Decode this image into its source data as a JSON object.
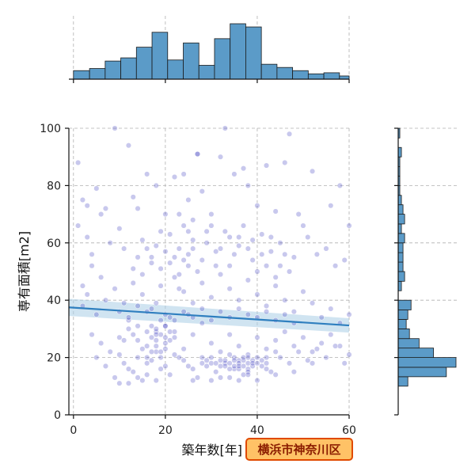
{
  "chart_data": {
    "type": "scatter",
    "title": "",
    "xlabel": "築年数[年]",
    "ylabel": "専有面積[m2]",
    "tag": "横浜市神奈川区",
    "xlim": [
      -1,
      60
    ],
    "ylim": [
      0,
      100
    ],
    "x_ticks": [
      0,
      20,
      40,
      60
    ],
    "y_ticks": [
      0,
      20,
      40,
      60,
      80,
      100
    ],
    "grid": true,
    "colors": {
      "point": "#3b3bbf",
      "regression": "#2f7fbf",
      "band": "#a9cde6",
      "hist_fill": "#5b9bc8",
      "hist_edge": "#1a1a1a",
      "tag_fill": "#ffc266",
      "tag_border": "#e04a00"
    },
    "regression": {
      "x": [
        -1,
        60
      ],
      "y": [
        37.5,
        31.2
      ],
      "band_halfwidth": [
        3.0,
        2.5
      ]
    },
    "points": [
      [
        1,
        88
      ],
      [
        1,
        66
      ],
      [
        2,
        75
      ],
      [
        3,
        73
      ],
      [
        4,
        56
      ],
      [
        5,
        79
      ],
      [
        6,
        70
      ],
      [
        7,
        72
      ],
      [
        3,
        62
      ],
      [
        2,
        45
      ],
      [
        4,
        52
      ],
      [
        6,
        48
      ],
      [
        9,
        100
      ],
      [
        10,
        65
      ],
      [
        12,
        94
      ],
      [
        13,
        76
      ],
      [
        14,
        72
      ],
      [
        16,
        84
      ],
      [
        18,
        80
      ],
      [
        20,
        70
      ],
      [
        22,
        83
      ],
      [
        24,
        84
      ],
      [
        25,
        75
      ],
      [
        27,
        91
      ],
      [
        28,
        78
      ],
      [
        30,
        70
      ],
      [
        32,
        90
      ],
      [
        33,
        100
      ],
      [
        35,
        84
      ],
      [
        37,
        86
      ],
      [
        38,
        80
      ],
      [
        40,
        73
      ],
      [
        42,
        87
      ],
      [
        44,
        71
      ],
      [
        46,
        88
      ],
      [
        47,
        98
      ],
      [
        49,
        70
      ],
      [
        50,
        66
      ],
      [
        52,
        85
      ],
      [
        56,
        73
      ],
      [
        58,
        80
      ],
      [
        60,
        66
      ],
      [
        8,
        60
      ],
      [
        11,
        58
      ],
      [
        15,
        61
      ],
      [
        17,
        55
      ],
      [
        19,
        64
      ],
      [
        21,
        63
      ],
      [
        23,
        58
      ],
      [
        26,
        61
      ],
      [
        29,
        64
      ],
      [
        31,
        57
      ],
      [
        34,
        62
      ],
      [
        36,
        59
      ],
      [
        39,
        61
      ],
      [
        41,
        63
      ],
      [
        43,
        57
      ],
      [
        45,
        60
      ],
      [
        48,
        55
      ],
      [
        51,
        62
      ],
      [
        53,
        56
      ],
      [
        55,
        58
      ],
      [
        57,
        52
      ],
      [
        59,
        54
      ],
      [
        2,
        38
      ],
      [
        3,
        42
      ],
      [
        5,
        35
      ],
      [
        7,
        40
      ],
      [
        9,
        44
      ],
      [
        11,
        39
      ],
      [
        13,
        46
      ],
      [
        15,
        42
      ],
      [
        17,
        37
      ],
      [
        19,
        45
      ],
      [
        22,
        48
      ],
      [
        24,
        43
      ],
      [
        26,
        39
      ],
      [
        28,
        46
      ],
      [
        30,
        41
      ],
      [
        32,
        49
      ],
      [
        34,
        44
      ],
      [
        36,
        40
      ],
      [
        38,
        47
      ],
      [
        40,
        42
      ],
      [
        42,
        38
      ],
      [
        44,
        45
      ],
      [
        46,
        40
      ],
      [
        48,
        36
      ],
      [
        50,
        43
      ],
      [
        52,
        39
      ],
      [
        54,
        34
      ],
      [
        56,
        37
      ],
      [
        58,
        32
      ],
      [
        60,
        35
      ],
      [
        4,
        28
      ],
      [
        6,
        25
      ],
      [
        8,
        22
      ],
      [
        10,
        27
      ],
      [
        12,
        30
      ],
      [
        14,
        26
      ],
      [
        16,
        24
      ],
      [
        18,
        29
      ],
      [
        20,
        31
      ],
      [
        22,
        27
      ],
      [
        24,
        23
      ],
      [
        26,
        28
      ],
      [
        28,
        32
      ],
      [
        30,
        25
      ],
      [
        32,
        22
      ],
      [
        34,
        28
      ],
      [
        36,
        24
      ],
      [
        38,
        21
      ],
      [
        40,
        27
      ],
      [
        42,
        23
      ],
      [
        44,
        26
      ],
      [
        46,
        29
      ],
      [
        48,
        24
      ],
      [
        50,
        27
      ],
      [
        52,
        22
      ],
      [
        54,
        25
      ],
      [
        56,
        28
      ],
      [
        58,
        24
      ],
      [
        60,
        21
      ],
      [
        5,
        20
      ],
      [
        7,
        17
      ],
      [
        9,
        13
      ],
      [
        11,
        18
      ],
      [
        13,
        15
      ],
      [
        15,
        12
      ],
      [
        17,
        19
      ],
      [
        19,
        16
      ],
      [
        21,
        14
      ],
      [
        23,
        20
      ],
      [
        25,
        17
      ],
      [
        27,
        13
      ],
      [
        29,
        19
      ],
      [
        31,
        15
      ],
      [
        33,
        18
      ],
      [
        35,
        16
      ],
      [
        37,
        14
      ],
      [
        39,
        19
      ],
      [
        41,
        17
      ],
      [
        43,
        15
      ],
      [
        45,
        20
      ],
      [
        47,
        18
      ],
      [
        49,
        22
      ],
      [
        51,
        19
      ],
      [
        53,
        23
      ],
      [
        55,
        20
      ],
      [
        57,
        24
      ],
      [
        59,
        18
      ],
      [
        10,
        21
      ],
      [
        12,
        16
      ],
      [
        14,
        20
      ],
      [
        16,
        18
      ],
      [
        18,
        22
      ],
      [
        20,
        17
      ],
      [
        22,
        21
      ],
      [
        24,
        19
      ],
      [
        26,
        16
      ],
      [
        28,
        20
      ],
      [
        30,
        18
      ],
      [
        32,
        17
      ],
      [
        34,
        21
      ],
      [
        36,
        19
      ],
      [
        38,
        16
      ],
      [
        40,
        20
      ],
      [
        42,
        18
      ],
      [
        44,
        22
      ],
      [
        35,
        17
      ],
      [
        36,
        18
      ],
      [
        37,
        19
      ],
      [
        38,
        18
      ],
      [
        34,
        16
      ],
      [
        33,
        19
      ],
      [
        35,
        20
      ],
      [
        36,
        16
      ],
      [
        37,
        17
      ],
      [
        38,
        20
      ],
      [
        39,
        17
      ],
      [
        34,
        18
      ],
      [
        35,
        19
      ],
      [
        36,
        17
      ],
      [
        37,
        20
      ],
      [
        38,
        15
      ],
      [
        39,
        18
      ],
      [
        33,
        17
      ],
      [
        32,
        19
      ],
      [
        31,
        18
      ],
      [
        40,
        18
      ],
      [
        41,
        19
      ],
      [
        42,
        20
      ],
      [
        30,
        20
      ],
      [
        29,
        17
      ],
      [
        28,
        18
      ],
      [
        18,
        30
      ],
      [
        19,
        28
      ],
      [
        20,
        31
      ],
      [
        17,
        27
      ],
      [
        18,
        24
      ],
      [
        19,
        22
      ],
      [
        20,
        25
      ],
      [
        21,
        29
      ],
      [
        16,
        29
      ],
      [
        17,
        31
      ],
      [
        18,
        26
      ],
      [
        19,
        20
      ],
      [
        20,
        23
      ],
      [
        21,
        26
      ],
      [
        22,
        29
      ],
      [
        15,
        23
      ],
      [
        16,
        20
      ],
      [
        17,
        22
      ],
      [
        18,
        28
      ],
      [
        19,
        33
      ],
      [
        20,
        27
      ],
      [
        14,
        31
      ],
      [
        13,
        28
      ],
      [
        12,
        33
      ],
      [
        11,
        26
      ],
      [
        25,
        56
      ],
      [
        26,
        58
      ],
      [
        24,
        54
      ],
      [
        25,
        52
      ],
      [
        26,
        68
      ],
      [
        24,
        66
      ],
      [
        25,
        64
      ],
      [
        23,
        70
      ],
      [
        27,
        50
      ],
      [
        28,
        54
      ],
      [
        29,
        60
      ],
      [
        30,
        66
      ],
      [
        31,
        52
      ],
      [
        32,
        58
      ],
      [
        33,
        64
      ],
      [
        34,
        52
      ],
      [
        35,
        56
      ],
      [
        36,
        62
      ],
      [
        37,
        66
      ],
      [
        38,
        58
      ],
      [
        39,
        54
      ],
      [
        40,
        50
      ],
      [
        41,
        56
      ],
      [
        42,
        52
      ],
      [
        43,
        62
      ],
      [
        44,
        48
      ],
      [
        45,
        52
      ],
      [
        46,
        56
      ],
      [
        47,
        50
      ],
      [
        13,
        51
      ],
      [
        14,
        55
      ],
      [
        15,
        49
      ],
      [
        16,
        58
      ],
      [
        17,
        53
      ],
      [
        18,
        59
      ],
      [
        19,
        51
      ],
      [
        20,
        57
      ],
      [
        21,
        53
      ],
      [
        22,
        55
      ],
      [
        23,
        49
      ],
      [
        10,
        36
      ],
      [
        12,
        34
      ],
      [
        14,
        38
      ],
      [
        16,
        36
      ],
      [
        18,
        39
      ],
      [
        20,
        35
      ],
      [
        22,
        33
      ],
      [
        24,
        36
      ],
      [
        26,
        34
      ],
      [
        28,
        37
      ],
      [
        30,
        33
      ],
      [
        32,
        36
      ],
      [
        34,
        34
      ],
      [
        36,
        37
      ],
      [
        38,
        35
      ],
      [
        40,
        34
      ],
      [
        42,
        36
      ],
      [
        44,
        33
      ],
      [
        46,
        35
      ],
      [
        48,
        32
      ],
      [
        27,
        91
      ],
      [
        25,
        35
      ],
      [
        23,
        44
      ],
      [
        21,
        34
      ],
      [
        10,
        11
      ],
      [
        12,
        11
      ],
      [
        14,
        13
      ],
      [
        16,
        14
      ],
      [
        18,
        12
      ],
      [
        26,
        12
      ],
      [
        30,
        12
      ],
      [
        32,
        13
      ],
      [
        34,
        13
      ],
      [
        36,
        12
      ],
      [
        38,
        14
      ],
      [
        40,
        12
      ],
      [
        42,
        16
      ],
      [
        44,
        14
      ],
      [
        48,
        15
      ],
      [
        52,
        18
      ]
    ],
    "x_hist": {
      "bin_edges": [
        0,
        3.5,
        6.9,
        10.3,
        13.7,
        17.1,
        20.5,
        23.9,
        27.3,
        30.7,
        34.1,
        37.5,
        40.9,
        44.3,
        47.7,
        51.1,
        54.5,
        57.9,
        60
      ],
      "counts": [
        8,
        10,
        17,
        20,
        30,
        44,
        18,
        34,
        13,
        38,
        52,
        49,
        14,
        11,
        8,
        5,
        6,
        3
      ]
    },
    "y_hist": {
      "bin_edges": [
        0,
        3.3,
        6.6,
        10,
        13.3,
        16.6,
        20,
        23.3,
        26.6,
        30,
        33.3,
        36.6,
        40,
        43.3,
        46.6,
        50,
        53.3,
        56.6,
        60,
        63.3,
        66.6,
        70,
        73.3,
        76.6,
        80,
        83.3,
        86.6,
        90,
        93.3,
        96.6,
        100
      ],
      "counts": [
        0,
        0,
        0,
        6,
        30,
        36,
        22,
        13,
        7,
        5,
        6,
        8,
        0,
        2,
        4,
        3,
        3,
        3,
        4,
        2,
        4,
        3,
        2,
        1,
        1,
        1,
        1,
        2,
        0,
        1
      ]
    }
  }
}
